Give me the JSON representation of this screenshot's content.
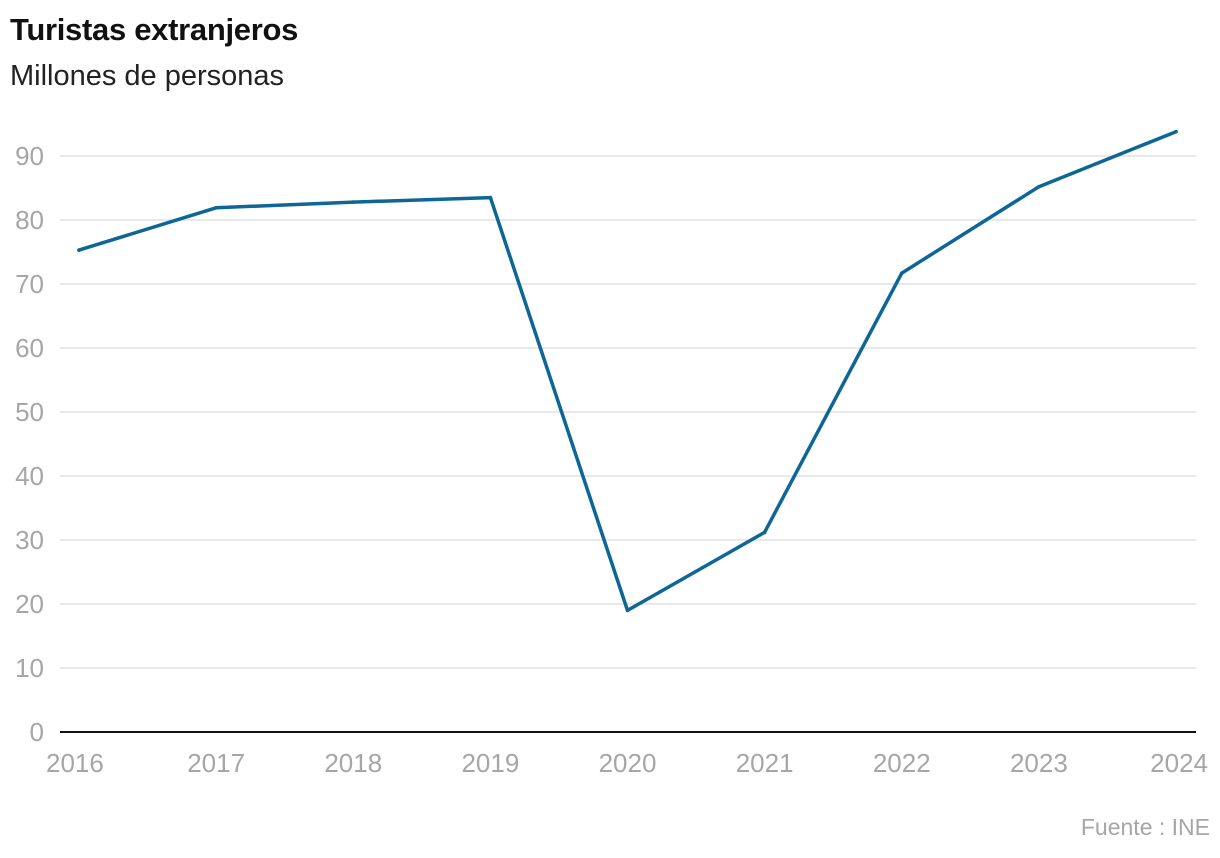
{
  "chart_data": {
    "type": "line",
    "title": "Turistas extranjeros",
    "subtitle": "Millones de personas",
    "xlabel": "",
    "ylabel": "",
    "x": [
      "2016",
      "2017",
      "2018",
      "2019",
      "2020",
      "2021",
      "2022",
      "2023",
      "2024"
    ],
    "series": [
      {
        "values": [
          75.3,
          81.9,
          82.8,
          83.5,
          19.0,
          31.2,
          71.7,
          85.2,
          93.8
        ]
      }
    ],
    "ylim": [
      0,
      90
    ],
    "yticks": [
      0,
      10,
      20,
      30,
      40,
      50,
      60,
      70,
      80,
      90
    ],
    "grid": true,
    "legend": "none",
    "colors": {
      "line": "#0e6697",
      "grid": "#e2e2e2",
      "axis": "#111111",
      "tick_text": "#a6a6a6"
    }
  },
  "source": "Fuente : INE"
}
